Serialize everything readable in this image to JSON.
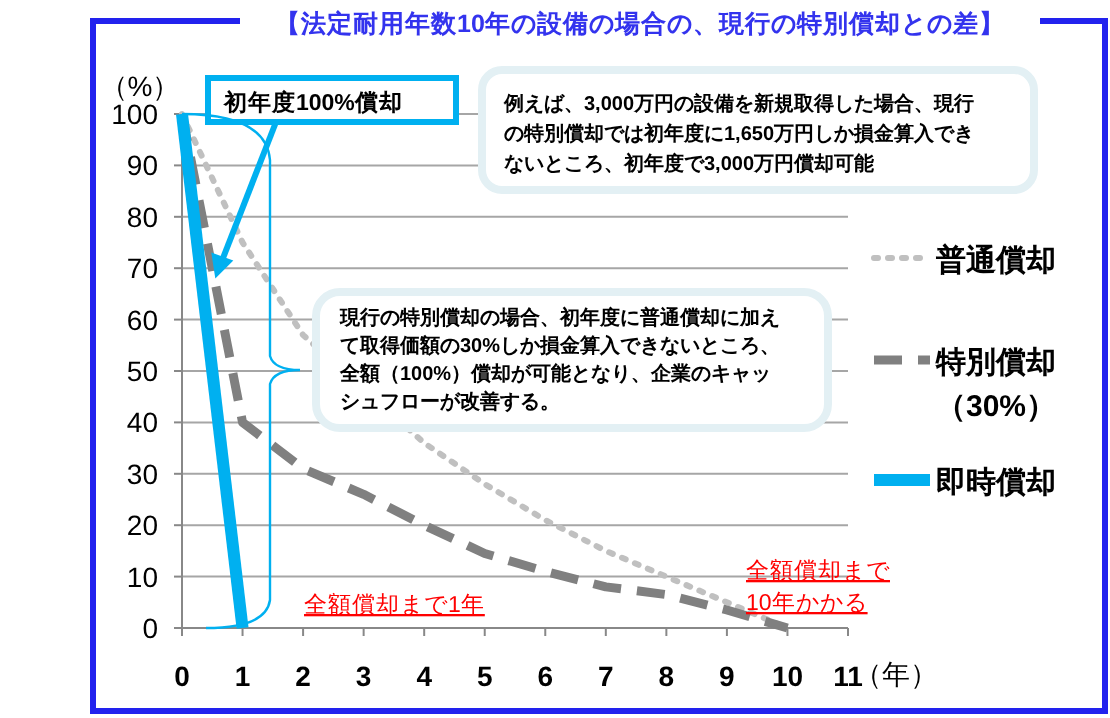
{
  "chart_data": {
    "type": "line",
    "title": "【法定耐用年数10年の設備の場合の、現行の特別償却との差】",
    "xlabel": "（年）",
    "ylabel": "（%）",
    "x": [
      0,
      1,
      2,
      3,
      4,
      5,
      6,
      7,
      8,
      9,
      10
    ],
    "xlim": [
      0,
      11
    ],
    "xticks": [
      0,
      1,
      2,
      3,
      4,
      5,
      6,
      7,
      8,
      9,
      10,
      11
    ],
    "ylim": [
      0,
      100
    ],
    "yticks": [
      0,
      10,
      20,
      30,
      40,
      50,
      60,
      70,
      80,
      90,
      100
    ],
    "grid": "y",
    "legend": "right",
    "series": [
      {
        "name": "普通償却",
        "color": "#c0c0c0",
        "line_style": "dotted",
        "values": [
          100,
          75,
          57,
          null,
          36,
          28,
          21,
          15,
          10,
          5,
          0
        ]
      },
      {
        "name": "特別償却（30%）",
        "color": "#808080",
        "line_style": "dashed",
        "values": [
          100,
          40,
          31,
          26,
          20,
          14.5,
          11,
          8,
          6.5,
          3.5,
          0
        ]
      },
      {
        "name": "即時償却",
        "color": "#00b0f0",
        "line_style": "solid",
        "x": [
          0,
          1
        ],
        "values": [
          100,
          0
        ]
      }
    ],
    "annotations": [
      {
        "text": "初年度100%償却",
        "x": 0.55,
        "y": 68
      },
      "例えば、3,000万円の設備を新規取得した場合、現行の特別償却では初年度に1,650万円しか損金算入できないところ、初年度で3,000万円償却可能",
      "現行の特別償却の場合、初年度に普通償却に加えて取得価額の30%しか損金算入できないところ、全額（100%）償却が可能となり、企業のキャッシュフローが改善する。",
      "全額償却まで1年",
      "全額償却まで10年かかる"
    ]
  }
}
